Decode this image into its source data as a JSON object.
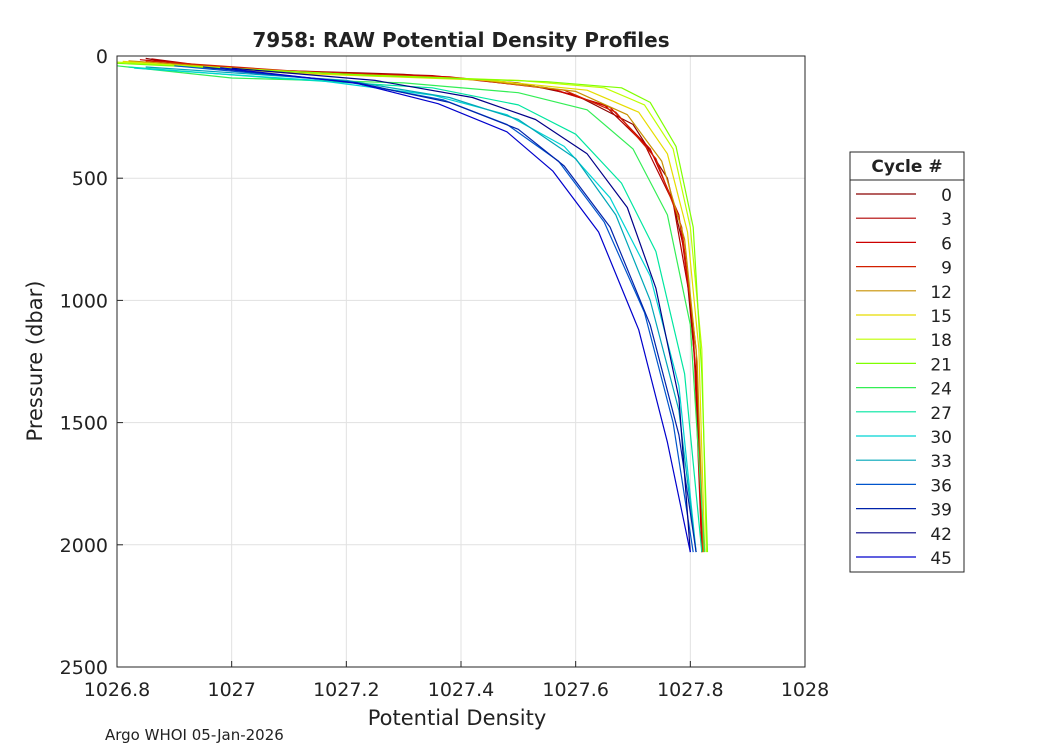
{
  "footer": "Argo WHOI 05-Jan-2026",
  "chart_data": {
    "type": "line",
    "title": "7958: RAW Potential Density Profiles",
    "xlabel": "Potential Density",
    "ylabel": "Pressure (dbar)",
    "xlim": [
      1026.8,
      1028
    ],
    "ylim": [
      0,
      2500
    ],
    "y_reversed": true,
    "grid": true,
    "x_ticks": [
      "1026.8",
      "1027",
      "1027.2",
      "1027.4",
      "1027.6",
      "1027.8",
      "1028"
    ],
    "y_ticks": [
      "0",
      "500",
      "1000",
      "1500",
      "2000",
      "2500"
    ],
    "legend": {
      "title": "Cycle #",
      "placement": "right",
      "entries": [
        {
          "label": "0",
          "color": "#8b0000"
        },
        {
          "label": "3",
          "color": "#b00000"
        },
        {
          "label": "6",
          "color": "#cc0000"
        },
        {
          "label": "9",
          "color": "#d22000"
        },
        {
          "label": "12",
          "color": "#c89000"
        },
        {
          "label": "15",
          "color": "#e6dc00"
        },
        {
          "label": "18",
          "color": "#bfff00"
        },
        {
          "label": "21",
          "color": "#7fff00"
        },
        {
          "label": "24",
          "color": "#33ee55"
        },
        {
          "label": "27",
          "color": "#00e6a0"
        },
        {
          "label": "30",
          "color": "#00d4d4"
        },
        {
          "label": "33",
          "color": "#00a6b8"
        },
        {
          "label": "36",
          "color": "#0055cc"
        },
        {
          "label": "39",
          "color": "#0022aa"
        },
        {
          "label": "42",
          "color": "#000088"
        },
        {
          "label": "45",
          "color": "#0000cc"
        }
      ]
    },
    "series": [
      {
        "cycle": "0",
        "color": "#8b0000",
        "values": [
          [
            1026.85,
            10
          ],
          [
            1026.95,
            50
          ],
          [
            1027.3,
            75
          ],
          [
            1027.5,
            110
          ],
          [
            1027.6,
            160
          ],
          [
            1027.7,
            280
          ],
          [
            1027.76,
            500
          ],
          [
            1027.79,
            800
          ],
          [
            1027.81,
            1300
          ],
          [
            1027.82,
            2030
          ]
        ]
      },
      {
        "cycle": "3",
        "color": "#b00000",
        "values": [
          [
            1026.86,
            12
          ],
          [
            1027.0,
            55
          ],
          [
            1027.35,
            80
          ],
          [
            1027.55,
            130
          ],
          [
            1027.65,
            200
          ],
          [
            1027.72,
            360
          ],
          [
            1027.77,
            600
          ],
          [
            1027.8,
            1000
          ],
          [
            1027.815,
            1500
          ],
          [
            1027.82,
            2030
          ]
        ]
      },
      {
        "cycle": "6",
        "color": "#cc0000",
        "values": [
          [
            1026.84,
            15
          ],
          [
            1027.05,
            58
          ],
          [
            1027.38,
            85
          ],
          [
            1027.56,
            135
          ],
          [
            1027.66,
            210
          ],
          [
            1027.73,
            380
          ],
          [
            1027.78,
            650
          ],
          [
            1027.805,
            1100
          ],
          [
            1027.82,
            2030
          ]
        ]
      },
      {
        "cycle": "9",
        "color": "#d22000",
        "values": [
          [
            1026.85,
            20
          ],
          [
            1027.1,
            60
          ],
          [
            1027.4,
            90
          ],
          [
            1027.58,
            140
          ],
          [
            1027.67,
            230
          ],
          [
            1027.74,
            420
          ],
          [
            1027.785,
            700
          ],
          [
            1027.81,
            1200
          ],
          [
            1027.822,
            2030
          ]
        ]
      },
      {
        "cycle": "12",
        "color": "#c89000",
        "values": [
          [
            1026.82,
            20
          ],
          [
            1027.1,
            65
          ],
          [
            1027.42,
            95
          ],
          [
            1027.6,
            145
          ],
          [
            1027.69,
            240
          ],
          [
            1027.75,
            430
          ],
          [
            1027.79,
            750
          ],
          [
            1027.812,
            1250
          ],
          [
            1027.823,
            2030
          ]
        ]
      },
      {
        "cycle": "15",
        "color": "#e6dc00",
        "values": [
          [
            1026.81,
            22
          ],
          [
            1027.1,
            70
          ],
          [
            1027.45,
            100
          ],
          [
            1027.62,
            140
          ],
          [
            1027.71,
            230
          ],
          [
            1027.76,
            400
          ],
          [
            1027.795,
            720
          ],
          [
            1027.815,
            1200
          ],
          [
            1027.825,
            2030
          ]
        ]
      },
      {
        "cycle": "18",
        "color": "#bfff00",
        "values": [
          [
            1026.8,
            25
          ],
          [
            1027.2,
            75
          ],
          [
            1027.5,
            100
          ],
          [
            1027.65,
            130
          ],
          [
            1027.72,
            200
          ],
          [
            1027.77,
            380
          ],
          [
            1027.8,
            700
          ],
          [
            1027.82,
            1200
          ],
          [
            1027.828,
            2030
          ]
        ]
      },
      {
        "cycle": "21",
        "color": "#7fff00",
        "values": [
          [
            1026.8,
            30
          ],
          [
            1027.25,
            80
          ],
          [
            1027.55,
            105
          ],
          [
            1027.68,
            130
          ],
          [
            1027.73,
            190
          ],
          [
            1027.775,
            370
          ],
          [
            1027.805,
            700
          ],
          [
            1027.82,
            1300
          ],
          [
            1027.83,
            2030
          ]
        ]
      },
      {
        "cycle": "24",
        "color": "#33ee55",
        "values": [
          [
            1026.8,
            40
          ],
          [
            1027.0,
            90
          ],
          [
            1027.3,
            110
          ],
          [
            1027.5,
            150
          ],
          [
            1027.62,
            220
          ],
          [
            1027.7,
            380
          ],
          [
            1027.76,
            650
          ],
          [
            1027.8,
            1100
          ],
          [
            1027.825,
            2030
          ]
        ]
      },
      {
        "cycle": "27",
        "color": "#00e6a0",
        "values": [
          [
            1026.82,
            45
          ],
          [
            1027.1,
            95
          ],
          [
            1027.35,
            130
          ],
          [
            1027.5,
            200
          ],
          [
            1027.6,
            320
          ],
          [
            1027.68,
            520
          ],
          [
            1027.74,
            800
          ],
          [
            1027.79,
            1300
          ],
          [
            1027.82,
            2030
          ]
        ]
      },
      {
        "cycle": "30",
        "color": "#00d4d4",
        "values": [
          [
            1026.83,
            50
          ],
          [
            1027.15,
            100
          ],
          [
            1027.35,
            160
          ],
          [
            1027.48,
            240
          ],
          [
            1027.58,
            370
          ],
          [
            1027.66,
            580
          ],
          [
            1027.73,
            900
          ],
          [
            1027.78,
            1350
          ],
          [
            1027.81,
            2030
          ]
        ]
      },
      {
        "cycle": "33",
        "color": "#00a6b8",
        "values": [
          [
            1026.85,
            45
          ],
          [
            1027.2,
            100
          ],
          [
            1027.38,
            170
          ],
          [
            1027.5,
            260
          ],
          [
            1027.6,
            420
          ],
          [
            1027.67,
            650
          ],
          [
            1027.73,
            1000
          ],
          [
            1027.78,
            1450
          ],
          [
            1027.81,
            2030
          ]
        ]
      },
      {
        "cycle": "36",
        "color": "#0055cc",
        "values": [
          [
            1026.9,
            40
          ],
          [
            1027.2,
            105
          ],
          [
            1027.37,
            180
          ],
          [
            1027.48,
            280
          ],
          [
            1027.57,
            430
          ],
          [
            1027.65,
            680
          ],
          [
            1027.72,
            1050
          ],
          [
            1027.77,
            1500
          ],
          [
            1027.805,
            2030
          ]
        ]
      },
      {
        "cycle": "39",
        "color": "#0022aa",
        "values": [
          [
            1026.95,
            45
          ],
          [
            1027.22,
            110
          ],
          [
            1027.38,
            190
          ],
          [
            1027.5,
            300
          ],
          [
            1027.58,
            450
          ],
          [
            1027.66,
            700
          ],
          [
            1027.73,
            1100
          ],
          [
            1027.78,
            1550
          ],
          [
            1027.81,
            2030
          ]
        ]
      },
      {
        "cycle": "42",
        "color": "#000088",
        "values": [
          [
            1027.0,
            50
          ],
          [
            1027.25,
            100
          ],
          [
            1027.42,
            170
          ],
          [
            1027.53,
            260
          ],
          [
            1027.62,
            400
          ],
          [
            1027.69,
            620
          ],
          [
            1027.74,
            950
          ],
          [
            1027.78,
            1400
          ],
          [
            1027.8,
            2030
          ]
        ]
      },
      {
        "cycle": "45",
        "color": "#0000cc",
        "values": [
          [
            1026.98,
            48
          ],
          [
            1027.22,
            112
          ],
          [
            1027.36,
            195
          ],
          [
            1027.48,
            310
          ],
          [
            1027.56,
            470
          ],
          [
            1027.64,
            720
          ],
          [
            1027.71,
            1120
          ],
          [
            1027.76,
            1580
          ],
          [
            1027.8,
            2030
          ]
        ]
      }
    ]
  }
}
